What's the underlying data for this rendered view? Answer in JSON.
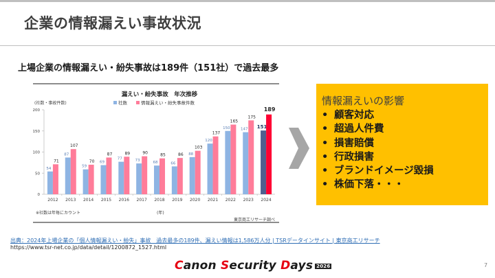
{
  "slide": {
    "title": "企業の情報漏えい事故状況",
    "subtitle": "上場企業の情報漏えい・紛失事故は189件（151社）で過去最多",
    "page_number": "7"
  },
  "impact": {
    "title": "情報漏えいの影響",
    "bullet": "•",
    "items": [
      "顧客対応",
      "超過人件費",
      "損害賠償",
      "行政損害",
      "ブランドイメージ毀損",
      "株価下落・・・"
    ],
    "color": "#ffc000"
  },
  "source": {
    "citation": "出典：2024年上場企業の「個人情報漏えい・紛失」事故　過去最多の189件、漏えい情報は1,586万人分 | TSRデータインサイト | 東京商工リサーチ",
    "url": "https://www.tsr-net.co.jp/data/detail/1200872_1527.html"
  },
  "logo": {
    "part1_red": "C",
    "part1": "anon ",
    "part2_red": "S",
    "part2": "ecurity ",
    "part3_red": "D",
    "part3": "ays",
    "year": "2026"
  },
  "chart_data": {
    "type": "bar",
    "title": "漏えい・紛失事故　年次推移",
    "ylabel": "(社数・事故件数)",
    "xlabel": "(年)",
    "note": "※社数は年毎にカウント",
    "credit": "東京商工リサーチ調べ",
    "ylim": [
      0,
      200
    ],
    "yticks": [
      0,
      50,
      100,
      150,
      200
    ],
    "grid": false,
    "legend_position": "top",
    "categories": [
      "2012",
      "2013",
      "2014",
      "2015",
      "2016",
      "2017",
      "2018",
      "2019",
      "2020",
      "2021",
      "2022",
      "2023",
      "2024"
    ],
    "series": [
      {
        "name": "社数",
        "values": [
          54,
          87,
          59,
          69,
          77,
          73,
          68,
          66,
          88,
          120,
          150,
          147,
          151
        ],
        "color": "#8eb4e3",
        "highlight_color": "#4f5f8f"
      },
      {
        "name": "情報漏えい・紛失事故件数",
        "values": [
          71,
          107,
          70,
          87,
          89,
          90,
          85,
          86,
          103,
          137,
          165,
          175,
          189
        ],
        "color": "#ff7c99",
        "highlight_color": "#ff0033"
      }
    ]
  }
}
